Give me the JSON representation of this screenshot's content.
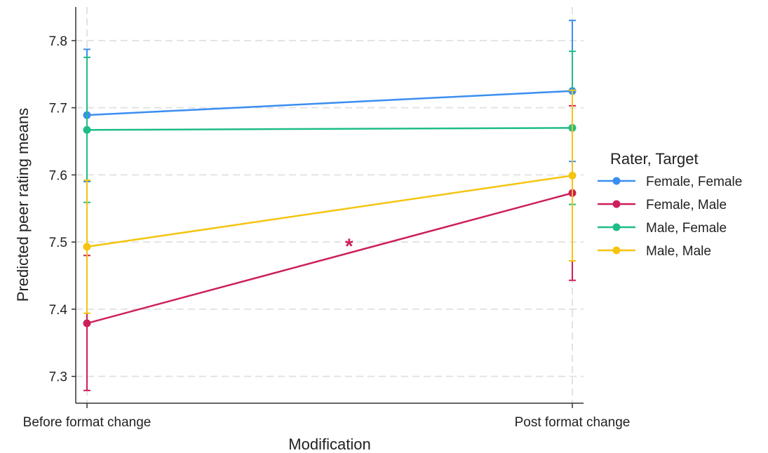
{
  "chart_data": {
    "type": "line",
    "title": "",
    "xlabel": "Modification",
    "ylabel": "Predicted peer rating means",
    "categories": [
      "Before format change",
      "Post format change"
    ],
    "ylim": [
      7.26,
      7.85
    ],
    "yticks": [
      7.3,
      7.4,
      7.5,
      7.6,
      7.7,
      7.8
    ],
    "ytick_labels": [
      "7.3",
      "7.4",
      "7.5",
      "7.6",
      "7.7",
      "7.8"
    ],
    "grid": true,
    "legend": {
      "title": "Rater, Target",
      "placement": "right"
    },
    "series": [
      {
        "name": "Female, Female",
        "color": "#3a8ef0",
        "values": [
          7.689,
          7.725
        ],
        "ci_low": [
          7.59,
          7.62
        ],
        "ci_high": [
          7.787,
          7.83
        ]
      },
      {
        "name": "Female, Male",
        "color": "#cc1f5c",
        "values": [
          7.379,
          7.573
        ],
        "ci_low": [
          7.279,
          7.443
        ],
        "ci_high": [
          7.48,
          7.703
        ]
      },
      {
        "name": "Male, Female",
        "color": "#1ebd85",
        "values": [
          7.667,
          7.67
        ],
        "ci_low": [
          7.559,
          7.556
        ],
        "ci_high": [
          7.775,
          7.784
        ]
      },
      {
        "name": "Male, Male",
        "color": "#f5c410",
        "values": [
          7.493,
          7.599
        ],
        "ci_low": [
          7.394,
          7.472
        ],
        "ci_high": [
          7.592,
          7.726
        ]
      }
    ],
    "annotations": [
      {
        "text": "*",
        "x": 0.54,
        "y": 7.5,
        "color": "#cc1f5c"
      }
    ]
  }
}
